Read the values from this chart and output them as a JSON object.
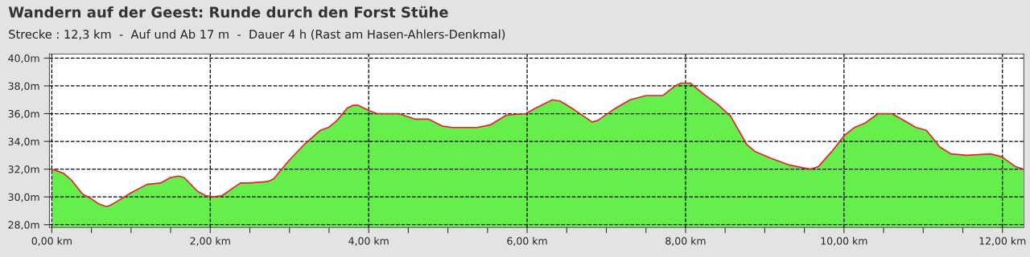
{
  "chart_data": {
    "type": "area",
    "title": "Wandern auf der Geest: Runde durch den Forst Stühe",
    "subtitle": "Strecke : 12,3 km  -  Auf und Ab 17 m  -  Dauer 4 h (Rast am Hasen-Ahlers-Denkmal)",
    "x": [
      0,
      0.15,
      0.25,
      0.39,
      0.49,
      0.59,
      0.69,
      0.74,
      0.83,
      1.0,
      1.2,
      1.37,
      1.5,
      1.6,
      1.67,
      1.84,
      1.94,
      2.04,
      2.15,
      2.38,
      2.48,
      2.72,
      2.8,
      2.99,
      3.19,
      3.39,
      3.49,
      3.6,
      3.73,
      3.8,
      3.87,
      4.01,
      4.11,
      4.38,
      4.59,
      4.76,
      4.93,
      5.06,
      5.37,
      5.54,
      5.74,
      5.98,
      6.11,
      6.32,
      6.42,
      6.59,
      6.82,
      6.89,
      7.09,
      7.3,
      7.5,
      7.71,
      7.87,
      7.94,
      8.06,
      8.23,
      8.4,
      8.57,
      8.77,
      8.87,
      9.07,
      9.31,
      9.48,
      9.58,
      9.68,
      9.85,
      10.0,
      10.13,
      10.26,
      10.43,
      10.6,
      10.7,
      10.91,
      11.04,
      11.21,
      11.35,
      11.55,
      11.85,
      11.99,
      12.16,
      12.26
    ],
    "series": [
      {
        "color": "#66ee4c",
        "values": [
          32.0,
          31.7,
          31.2,
          30.2,
          29.9,
          29.5,
          29.3,
          29.4,
          29.7,
          30.3,
          30.9,
          31.0,
          31.4,
          31.5,
          31.4,
          30.4,
          30.1,
          30.0,
          30.1,
          31.0,
          31.0,
          31.1,
          31.3,
          32.6,
          33.8,
          34.8,
          35.0,
          35.5,
          36.4,
          36.6,
          36.6,
          36.2,
          36.0,
          36.0,
          35.6,
          35.6,
          35.1,
          35.0,
          35.0,
          35.2,
          35.9,
          36.0,
          36.4,
          37.0,
          36.9,
          36.3,
          35.4,
          35.5,
          36.3,
          37.0,
          37.3,
          37.3,
          38.0,
          38.2,
          38.2,
          37.4,
          36.7,
          35.8,
          33.8,
          33.3,
          32.8,
          32.3,
          32.1,
          32.0,
          32.2,
          33.3,
          34.4,
          35.0,
          35.3,
          36.0,
          36.0,
          35.7,
          35.0,
          34.8,
          33.6,
          33.1,
          33.0,
          33.1,
          32.9,
          32.2,
          32.0
        ]
      },
      {
        "type": "line",
        "color": "#e8202a",
        "values": [
          32.0,
          31.7,
          31.2,
          30.2,
          29.9,
          29.5,
          29.3,
          29.4,
          29.7,
          30.3,
          30.9,
          31.0,
          31.4,
          31.5,
          31.4,
          30.4,
          30.1,
          30.0,
          30.1,
          31.0,
          31.0,
          31.1,
          31.3,
          32.6,
          33.8,
          34.8,
          35.0,
          35.5,
          36.4,
          36.6,
          36.6,
          36.2,
          36.0,
          36.0,
          35.6,
          35.6,
          35.1,
          35.0,
          35.0,
          35.2,
          35.9,
          36.0,
          36.4,
          37.0,
          36.9,
          36.3,
          35.4,
          35.5,
          36.3,
          37.0,
          37.3,
          37.3,
          38.0,
          38.2,
          38.2,
          37.4,
          36.7,
          35.8,
          33.8,
          33.3,
          32.8,
          32.3,
          32.1,
          32.0,
          32.2,
          33.3,
          34.4,
          35.0,
          35.3,
          36.0,
          36.0,
          35.7,
          35.0,
          34.8,
          33.6,
          33.1,
          33.0,
          33.1,
          32.9,
          32.2,
          32.0
        ]
      }
    ],
    "xlim": [
      -0.03,
      12.27
    ],
    "ylim": [
      27.8,
      40.3
    ],
    "xticks": [
      {
        "value": 0,
        "label": "0,00 km"
      },
      {
        "value": 0.5,
        "label": null
      },
      {
        "value": 1,
        "label": null
      },
      {
        "value": 1.5,
        "label": null
      },
      {
        "value": 2,
        "label": "2,00 km"
      },
      {
        "value": 2.5,
        "label": null
      },
      {
        "value": 3,
        "label": null
      },
      {
        "value": 3.5,
        "label": null
      },
      {
        "value": 4,
        "label": "4,00 km"
      },
      {
        "value": 4.5,
        "label": null
      },
      {
        "value": 5,
        "label": null
      },
      {
        "value": 5.5,
        "label": null
      },
      {
        "value": 6,
        "label": "6,00 km"
      },
      {
        "value": 6.5,
        "label": null
      },
      {
        "value": 7,
        "label": null
      },
      {
        "value": 7.5,
        "label": null
      },
      {
        "value": 8,
        "label": "8,00 km"
      },
      {
        "value": 8.5,
        "label": null
      },
      {
        "value": 9,
        "label": null
      },
      {
        "value": 9.5,
        "label": null
      },
      {
        "value": 10,
        "label": "10,00 km"
      },
      {
        "value": 10.5,
        "label": null
      },
      {
        "value": 11,
        "label": null
      },
      {
        "value": 11.5,
        "label": null
      },
      {
        "value": 12,
        "label": "12,00 km"
      }
    ],
    "yticks": [
      {
        "value": 28,
        "label": "28,0m"
      },
      {
        "value": 30,
        "label": "30,0m"
      },
      {
        "value": 32,
        "label": "32,0m"
      },
      {
        "value": 34,
        "label": "34,0m"
      },
      {
        "value": 36,
        "label": "36,0m"
      },
      {
        "value": 38,
        "label": "38,0m"
      },
      {
        "value": 40,
        "label": "40,0m"
      }
    ],
    "grid": true
  }
}
